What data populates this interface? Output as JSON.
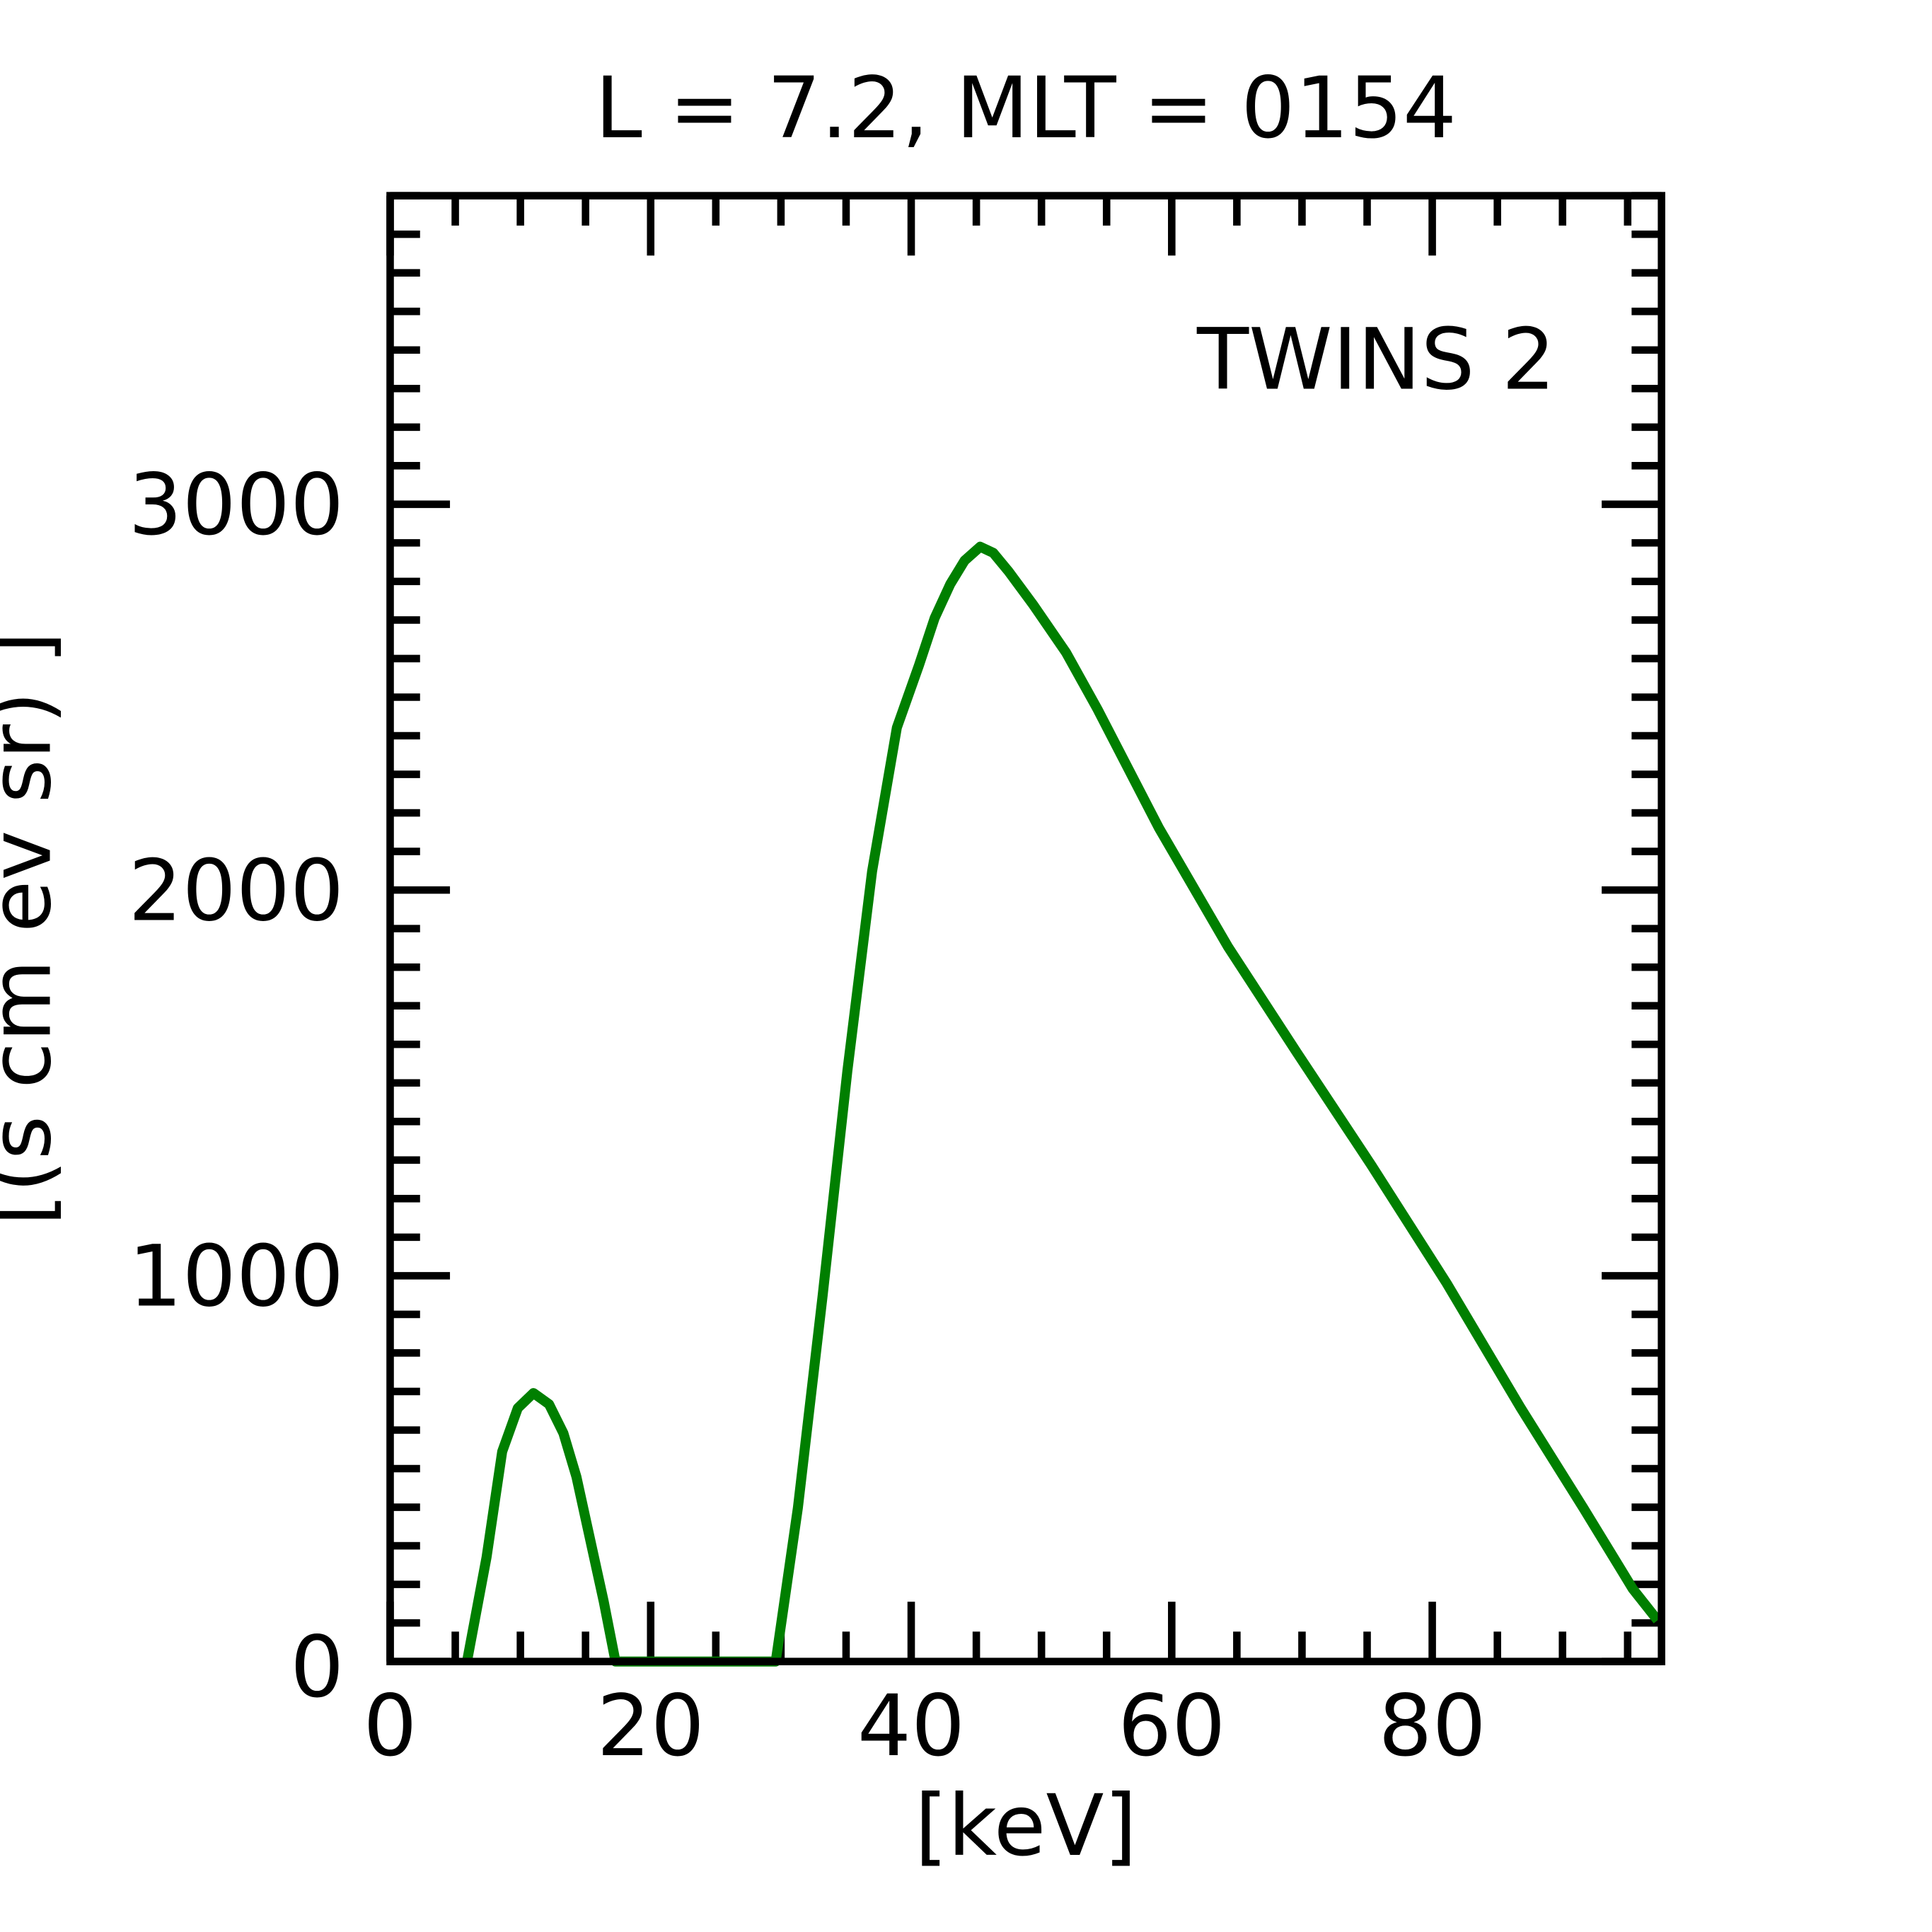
{
  "chart_data": {
    "type": "line",
    "title": "L =  7.2, MLT = 0154",
    "xlabel": "[keV]",
    "ylabel": "[(s cm ev sr)  ]",
    "xlim": [
      0,
      97.6
    ],
    "ylim": [
      0,
      3800
    ],
    "xticks": [
      0,
      20,
      40,
      60,
      80
    ],
    "xtick_labels": [
      "0",
      "20",
      "40",
      "60",
      "80"
    ],
    "yticks": [
      0,
      1000,
      2000,
      3000
    ],
    "ytick_labels": [
      "0",
      "1000",
      "2000",
      "3000"
    ],
    "x_minor_step": 5,
    "y_minor_step": 100,
    "grid": false,
    "legend": {
      "text": "TWINS 2",
      "placement": "top-right"
    },
    "series": [
      {
        "name": "TWINS 2",
        "color": "#007f00",
        "x": [
          5.9,
          7.4,
          8.6,
          9.8,
          11.0,
          12.2,
          13.3,
          14.3,
          15.2,
          16.4,
          17.3,
          29.6,
          31.3,
          33.2,
          35.1,
          37.0,
          38.9,
          40.6,
          41.8,
          43.0,
          44.1,
          45.3,
          46.3,
          47.5,
          49.4,
          51.9,
          54.3,
          59.0,
          64.3,
          69.6,
          75.3,
          81.1,
          86.8,
          91.6,
          95.4,
          97.3
        ],
        "y": [
          0,
          270,
          544,
          657,
          696,
          667,
          592,
          479,
          340,
          155,
          0,
          0,
          398,
          948,
          1531,
          2049,
          2421,
          2583,
          2705,
          2793,
          2854,
          2890,
          2874,
          2825,
          2738,
          2615,
          2469,
          2162,
          1854,
          1579,
          1288,
          981,
          657,
          398,
          188,
          107
        ]
      }
    ]
  }
}
